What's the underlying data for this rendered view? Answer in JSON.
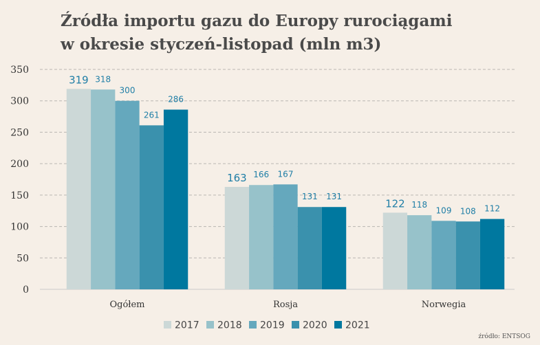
{
  "title_line1": "Źródła importu gazu do Europy rurociągami",
  "title_line2": "w okresie styczeń-listopad (mln m3)",
  "source": "źródło: ENTSOG",
  "chart_data": {
    "type": "bar",
    "categories": [
      "Ogółem",
      "Rosja",
      "Norwegia"
    ],
    "series": [
      {
        "name": "2017",
        "values": [
          319,
          163,
          122
        ],
        "color": "#ccd8d7"
      },
      {
        "name": "2018",
        "values": [
          318,
          166,
          118
        ],
        "color": "#97c2ca"
      },
      {
        "name": "2019",
        "values": [
          300,
          167,
          109
        ],
        "color": "#65a8bd"
      },
      {
        "name": "2020",
        "values": [
          261,
          131,
          108
        ],
        "color": "#3a91ad"
      },
      {
        "name": "2021",
        "values": [
          286,
          131,
          112
        ],
        "color": "#00789f"
      }
    ],
    "ylim": [
      0,
      350
    ],
    "yticks": [
      0,
      50,
      100,
      150,
      200,
      250,
      300,
      350
    ],
    "grid": true,
    "legend": "bottom",
    "label_color": "#1f7ea6"
  }
}
